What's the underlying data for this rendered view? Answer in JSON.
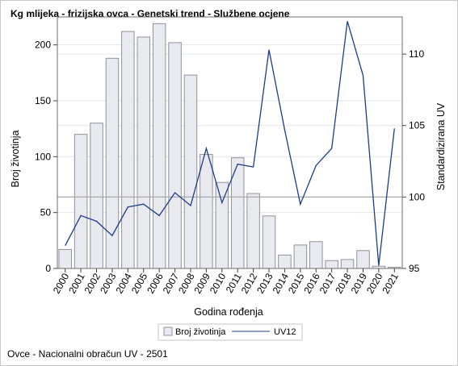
{
  "title": "Kg mlijeka - frizijska ovca - Genetski trend - Službene ocjene",
  "footnote": "Ovce - Nacionalni obračun UV - 2501",
  "colors": {
    "bar_fill": "#e8eaef",
    "bar_stroke": "#8e939c",
    "line": "#1d3c8a",
    "reference_line": "#a8a8a8",
    "grid": "#e4e6ea"
  },
  "chart_data": {
    "type": "bar",
    "title": "Kg mlijeka - frizijska ovca - Genetski trend - Službene ocjene",
    "xlabel": "Godina rođenja",
    "ylabel": "Broj životinja",
    "y2label": "Standardizirana UV",
    "categories": [
      "2000",
      "2001",
      "2002",
      "2003",
      "2004",
      "2005",
      "2006",
      "2007",
      "2008",
      "2009",
      "2010",
      "2011",
      "2012",
      "2013",
      "2014",
      "2015",
      "2016",
      "2017",
      "2018",
      "2019",
      "2020",
      "2021"
    ],
    "ylim": [
      0,
      225
    ],
    "yticks": [
      0,
      50,
      100,
      150,
      200
    ],
    "y2lim": [
      95,
      112.6
    ],
    "y2ticks": [
      95,
      100,
      105,
      110
    ],
    "y2_reference": 100,
    "grid": true,
    "legend_position": "bottom",
    "series": [
      {
        "name": "Broj životinja",
        "type": "bar",
        "axis": "left",
        "values": [
          17,
          120,
          130,
          188,
          212,
          207,
          219,
          202,
          173,
          102,
          77,
          99,
          67,
          47,
          12,
          21,
          24,
          7,
          8,
          16,
          2,
          1
        ]
      },
      {
        "name": "UV12",
        "type": "line",
        "axis": "right",
        "values": [
          96.6,
          98.7,
          98.3,
          97.3,
          99.3,
          99.5,
          98.7,
          100.3,
          99.4,
          103.4,
          99.6,
          102.3,
          102.1,
          110.3,
          104.7,
          99.5,
          102.2,
          103.4,
          112.3,
          108.5,
          95.2,
          104.8
        ]
      }
    ]
  }
}
